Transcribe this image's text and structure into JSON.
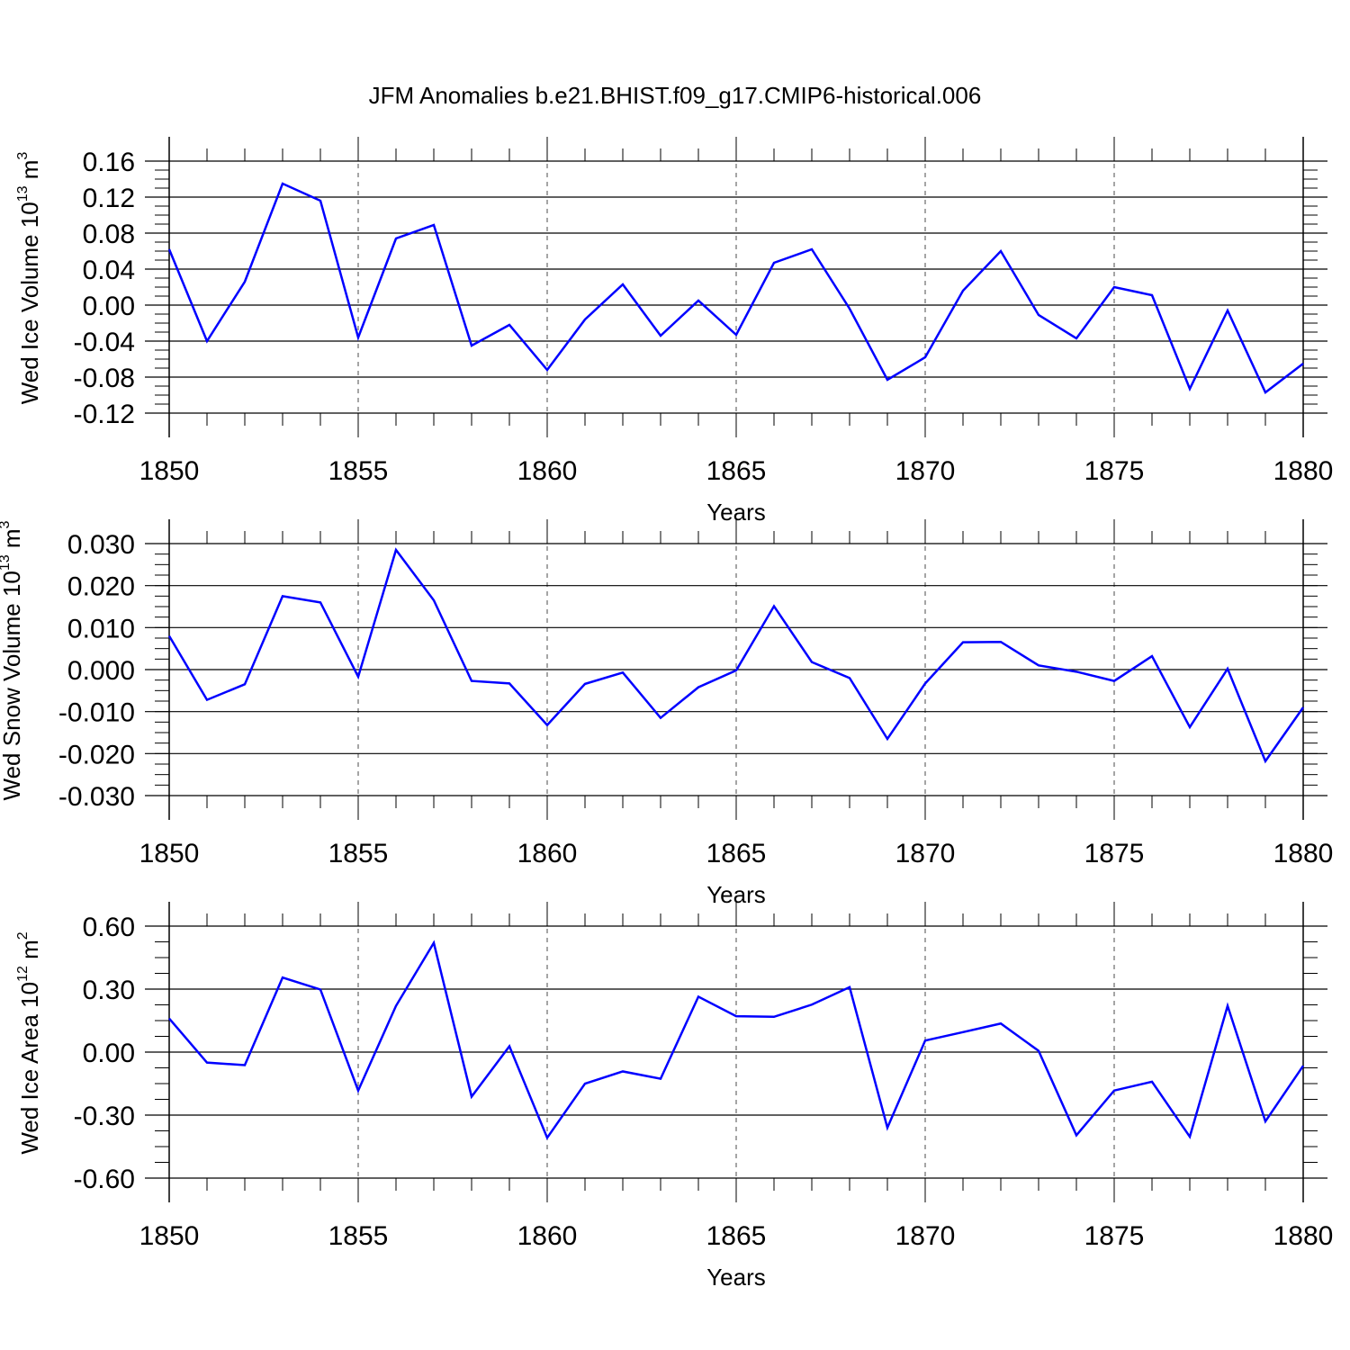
{
  "title": "JFM Anomalies b.e21.BHIST.f09_g17.CMIP6-historical.006",
  "colors": {
    "line": "#0000ff",
    "axis": "#000000",
    "grid": "#000000"
  },
  "chart_data": [
    {
      "type": "line",
      "xlabel": "Years",
      "ylabel": {
        "main": "Wed Ice Volume 10",
        "exp": "13",
        "unit": " m",
        "unit_exp": "3"
      },
      "xlim": [
        1850,
        1880
      ],
      "ylim": [
        -0.12,
        0.16
      ],
      "yticks": [
        -0.12,
        -0.08,
        -0.04,
        0.0,
        0.04,
        0.08,
        0.12,
        0.16
      ],
      "ytick_labels": [
        "-0.12",
        "-0.08",
        "-0.04",
        "0.00",
        "0.04",
        "0.08",
        "0.12",
        "0.16"
      ],
      "xticks": [
        1850,
        1855,
        1860,
        1865,
        1870,
        1875,
        1880
      ],
      "xtick_labels": [
        "1850",
        "1855",
        "1860",
        "1865",
        "1870",
        "1875",
        "1880"
      ],
      "grid": "vertical dashed at labeled years",
      "x": [
        1850,
        1851,
        1852,
        1853,
        1854,
        1855,
        1856,
        1857,
        1858,
        1859,
        1860,
        1861,
        1862,
        1863,
        1864,
        1865,
        1866,
        1867,
        1868,
        1869,
        1870,
        1871,
        1872,
        1873,
        1874,
        1875,
        1876,
        1877,
        1878,
        1879,
        1880
      ],
      "series": [
        {
          "values": [
            0.062,
            -0.04,
            0.026,
            0.135,
            0.116,
            -0.036,
            0.074,
            0.089,
            -0.045,
            -0.022,
            -0.072,
            -0.016,
            0.023,
            -0.034,
            0.005,
            -0.033,
            0.047,
            0.062,
            -0.004,
            -0.083,
            -0.058,
            0.016,
            0.06,
            -0.011,
            -0.037,
            0.02,
            0.011,
            -0.093,
            -0.006,
            -0.097,
            -0.065
          ]
        }
      ]
    },
    {
      "type": "line",
      "xlabel": "Years",
      "ylabel": {
        "main": "Wed Snow Volume 10",
        "exp": "13",
        "unit": " m",
        "unit_exp": "3"
      },
      "xlim": [
        1850,
        1880
      ],
      "ylim": [
        -0.03,
        0.03
      ],
      "yticks": [
        -0.03,
        -0.02,
        -0.01,
        0.0,
        0.01,
        0.02,
        0.03
      ],
      "ytick_labels": [
        "-0.030",
        "-0.020",
        "-0.010",
        "0.000",
        "0.010",
        "0.020",
        "0.030"
      ],
      "xticks": [
        1850,
        1855,
        1860,
        1865,
        1870,
        1875,
        1880
      ],
      "xtick_labels": [
        "1850",
        "1855",
        "1860",
        "1865",
        "1870",
        "1875",
        "1880"
      ],
      "grid": "vertical dashed at labeled years",
      "x": [
        1850,
        1851,
        1852,
        1853,
        1854,
        1855,
        1856,
        1857,
        1858,
        1859,
        1860,
        1861,
        1862,
        1863,
        1864,
        1865,
        1866,
        1867,
        1868,
        1869,
        1870,
        1871,
        1872,
        1873,
        1874,
        1875,
        1876,
        1877,
        1878,
        1879,
        1880
      ],
      "series": [
        {
          "values": [
            0.008,
            -0.0072,
            -0.0035,
            0.0175,
            0.016,
            -0.0017,
            0.0285,
            0.0165,
            -0.0027,
            -0.0033,
            -0.0132,
            -0.0034,
            -0.0007,
            -0.0115,
            -0.0042,
            -0.0002,
            0.0151,
            0.0018,
            -0.002,
            -0.0165,
            -0.0033,
            0.0065,
            0.0066,
            0.001,
            -0.0005,
            -0.0027,
            0.0032,
            -0.0137,
            0.0002,
            -0.0218,
            -0.009
          ]
        }
      ]
    },
    {
      "type": "line",
      "xlabel": "Years",
      "ylabel": {
        "main": "Wed Ice Area 10",
        "exp": "12",
        "unit": " m",
        "unit_exp": "2"
      },
      "xlim": [
        1850,
        1880
      ],
      "ylim": [
        -0.6,
        0.6
      ],
      "yticks": [
        -0.6,
        -0.3,
        0.0,
        0.3,
        0.6
      ],
      "ytick_labels": [
        "-0.60",
        "-0.30",
        "0.00",
        "0.30",
        "0.60"
      ],
      "xticks": [
        1850,
        1855,
        1860,
        1865,
        1870,
        1875,
        1880
      ],
      "xtick_labels": [
        "1850",
        "1855",
        "1860",
        "1865",
        "1870",
        "1875",
        "1880"
      ],
      "grid": "vertical dashed at labeled years",
      "x": [
        1850,
        1851,
        1852,
        1853,
        1854,
        1855,
        1856,
        1857,
        1858,
        1859,
        1860,
        1861,
        1862,
        1863,
        1864,
        1865,
        1866,
        1867,
        1868,
        1869,
        1870,
        1871,
        1872,
        1873,
        1874,
        1875,
        1876,
        1877,
        1878,
        1879,
        1880
      ],
      "series": [
        {
          "values": [
            0.16,
            -0.05,
            -0.062,
            0.355,
            0.298,
            -0.183,
            0.22,
            0.52,
            -0.212,
            0.028,
            -0.408,
            -0.15,
            -0.092,
            -0.127,
            0.264,
            0.171,
            0.168,
            0.226,
            0.309,
            -0.36,
            0.055,
            0.095,
            0.136,
            0.006,
            -0.396,
            -0.183,
            -0.141,
            -0.403,
            0.22,
            -0.33,
            -0.065
          ]
        }
      ]
    }
  ]
}
